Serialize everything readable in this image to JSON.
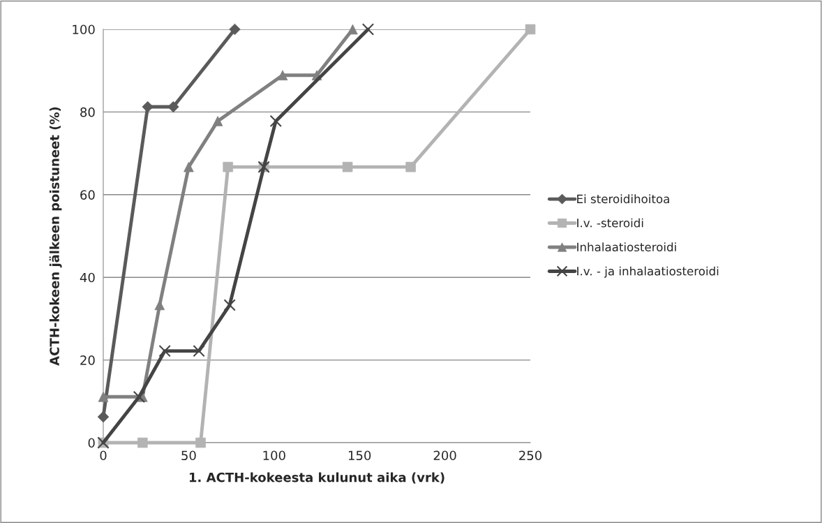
{
  "chart_data": {
    "type": "line",
    "xlabel": "1. ACTH-kokeesta kulunut aika (vrk)",
    "ylabel": "ACTH-kokeen jälkeen poistuneet (%)",
    "xlim": [
      0,
      250
    ],
    "xticks": [
      0,
      50,
      100,
      150,
      200,
      250
    ],
    "ylim": [
      0,
      100
    ],
    "yticks": [
      0,
      20,
      40,
      60,
      80,
      100
    ],
    "grid": "y",
    "legend": "right",
    "series": [
      {
        "name": "Ei steroidihoitoa",
        "color": "#5a5a5a",
        "marker": "diamond",
        "x": [
          0,
          26,
          41,
          77
        ],
        "values": [
          6.25,
          81.25,
          81.25,
          100
        ]
      },
      {
        "name": "I.v. -steroidi",
        "color": "#b3b3b3",
        "marker": "square",
        "x": [
          0,
          23,
          57,
          73,
          94,
          143,
          180,
          250
        ],
        "values": [
          0,
          0,
          0,
          66.7,
          66.7,
          66.7,
          66.7,
          100
        ]
      },
      {
        "name": "Inhalaatiosteroidi",
        "color": "#808080",
        "marker": "triangle",
        "x": [
          0,
          23,
          33,
          50,
          67,
          105,
          125,
          146
        ],
        "values": [
          11.1,
          11.1,
          33.3,
          66.7,
          77.8,
          88.9,
          88.9,
          100
        ]
      },
      {
        "name": "I.v. - ja inhalaatiosteroidi",
        "color": "#444444",
        "marker": "cross",
        "x": [
          0,
          21,
          36,
          56,
          74,
          94,
          101,
          155
        ],
        "values": [
          0,
          11.1,
          22.2,
          22.2,
          33.3,
          66.7,
          77.8,
          100
        ]
      }
    ]
  }
}
